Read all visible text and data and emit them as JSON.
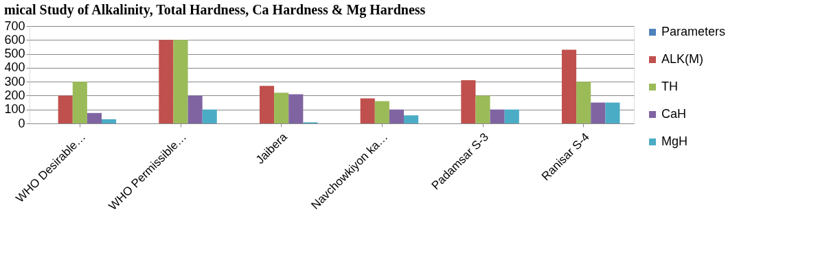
{
  "chart_data": {
    "type": "bar",
    "title": "mical Study of Alkalinity, Total Hardness, Ca Hardness & Mg Hardness",
    "categories": [
      "WHO Desirable…",
      "WHO Permissible…",
      "Jaibera",
      "Navchowkiyon ka…",
      "Padamsar S-3",
      "Ranisar S-4"
    ],
    "series": [
      {
        "name": "Parameters",
        "color": "#4f81bd",
        "values": [
          null,
          null,
          null,
          null,
          null,
          null
        ]
      },
      {
        "name": "ALK(M)",
        "color": "#c0504d",
        "values": [
          200,
          600,
          270,
          180,
          310,
          530
        ]
      },
      {
        "name": "TH",
        "color": "#9bbb59",
        "values": [
          300,
          600,
          220,
          160,
          200,
          300
        ]
      },
      {
        "name": "CaH",
        "color": "#8064a2",
        "values": [
          75,
          200,
          210,
          100,
          100,
          150
        ]
      },
      {
        "name": "MgH",
        "color": "#4bacc6",
        "values": [
          30,
          100,
          8,
          58,
          100,
          150
        ]
      }
    ],
    "ylim": [
      0,
      700
    ],
    "yticks": [
      0,
      100,
      200,
      300,
      400,
      500,
      600,
      700
    ],
    "grid": "y",
    "legend": "right"
  }
}
